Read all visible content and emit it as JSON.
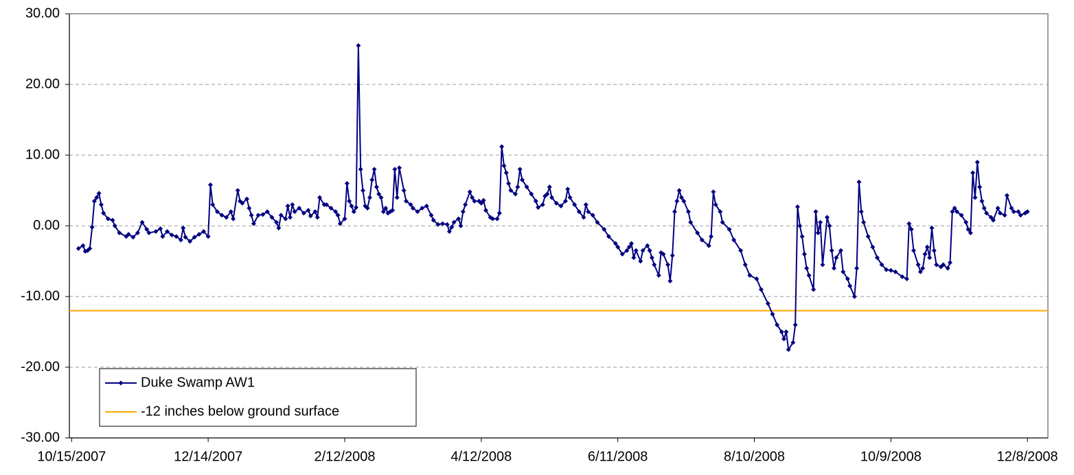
{
  "chart_data": {
    "type": "line",
    "x": [
      "10/18/2007",
      "10/20/2007",
      "10/21/2007",
      "10/22/2007",
      "10/23/2007",
      "10/24/2007",
      "10/25/2007",
      "10/26/2007",
      "10/27/2007",
      "10/28/2007",
      "10/29/2007",
      "10/31/2007",
      "11/2/2007",
      "11/3/2007",
      "11/5/2007",
      "11/8/2007",
      "11/9/2007",
      "11/11/2007",
      "11/13/2007",
      "11/15/2007",
      "11/17/2007",
      "11/18/2007",
      "11/21/2007",
      "11/23/2007",
      "11/24/2007",
      "11/26/2007",
      "11/28/2007",
      "11/30/2007",
      "12/2/2007",
      "12/3/2007",
      "12/4/2007",
      "12/6/2007",
      "12/8/2007",
      "12/10/2007",
      "12/12/2007",
      "12/14/2007",
      "12/15/2007",
      "12/16/2007",
      "12/18/2007",
      "12/20/2007",
      "12/22/2007",
      "12/24/2007",
      "12/25/2007",
      "12/27/2007",
      "12/28/2007",
      "12/29/2007",
      "12/31/2007",
      "1/1/2008",
      "1/2/2008",
      "1/3/2008",
      "1/5/2008",
      "1/7/2008",
      "1/9/2008",
      "1/11/2008",
      "1/13/2008",
      "1/14/2008",
      "1/15/2008",
      "1/17/2008",
      "1/18/2008",
      "1/19/2008",
      "1/20/2008",
      "1/21/2008",
      "1/23/2008",
      "1/25/2008",
      "1/27/2008",
      "1/28/2008",
      "1/30/2008",
      "1/31/2008",
      "2/1/2008",
      "2/3/2008",
      "2/4/2008",
      "2/6/2008",
      "2/8/2008",
      "2/9/2008",
      "2/10/2008",
      "2/12/2008",
      "2/13/2008",
      "2/14/2008",
      "2/15/2008",
      "2/16/2008",
      "2/17/2008",
      "2/18/2008",
      "2/19/2008",
      "2/20/2008",
      "2/21/2008",
      "2/22/2008",
      "2/23/2008",
      "2/24/2008",
      "2/25/2008",
      "2/26/2008",
      "2/27/2008",
      "2/28/2008",
      "2/29/2008",
      "3/1/2008",
      "3/2/2008",
      "3/3/2008",
      "3/4/2008",
      "3/5/2008",
      "3/6/2008",
      "3/7/2008",
      "3/9/2008",
      "3/10/2008",
      "3/12/2008",
      "3/13/2008",
      "3/15/2008",
      "3/17/2008",
      "3/19/2008",
      "3/21/2008",
      "3/22/2008",
      "3/24/2008",
      "3/26/2008",
      "3/28/2008",
      "3/29/2008",
      "3/30/2008",
      "3/31/2008",
      "4/2/2008",
      "4/3/2008",
      "4/4/2008",
      "4/5/2008",
      "4/7/2008",
      "4/8/2008",
      "4/9/2008",
      "4/11/2008",
      "4/12/2008",
      "4/13/2008",
      "4/14/2008",
      "4/16/2008",
      "4/17/2008",
      "4/19/2008",
      "4/20/2008",
      "4/21/2008",
      "4/22/2008",
      "4/23/2008",
      "4/24/2008",
      "4/25/2008",
      "4/27/2008",
      "4/28/2008",
      "4/29/2008",
      "4/30/2008",
      "5/2/2008",
      "5/4/2008",
      "5/6/2008",
      "5/7/2008",
      "5/9/2008",
      "5/10/2008",
      "5/11/2008",
      "5/12/2008",
      "5/13/2008",
      "5/15/2008",
      "5/17/2008",
      "5/19/2008",
      "5/20/2008",
      "5/21/2008",
      "5/23/2008",
      "5/25/2008",
      "5/27/2008",
      "5/28/2008",
      "5/29/2008",
      "5/31/2008",
      "6/2/2008",
      "6/5/2008",
      "6/7/2008",
      "6/10/2008",
      "6/11/2008",
      "6/13/2008",
      "6/15/2008",
      "6/16/2008",
      "6/17/2008",
      "6/18/2008",
      "6/19/2008",
      "6/21/2008",
      "6/22/2008",
      "6/24/2008",
      "6/25/2008",
      "6/26/2008",
      "6/27/2008",
      "6/29/2008",
      "6/30/2008",
      "7/1/2008",
      "7/3/2008",
      "7/4/2008",
      "7/5/2008",
      "7/6/2008",
      "7/7/2008",
      "7/8/2008",
      "7/9/2008",
      "7/10/2008",
      "7/12/2008",
      "7/13/2008",
      "7/16/2008",
      "7/18/2008",
      "7/21/2008",
      "7/22/2008",
      "7/23/2008",
      "7/24/2008",
      "7/26/2008",
      "7/27/2008",
      "7/30/2008",
      "8/1/2008",
      "8/4/2008",
      "8/6/2008",
      "8/8/2008",
      "8/11/2008",
      "8/13/2008",
      "8/16/2008",
      "8/18/2008",
      "8/20/2008",
      "8/22/2008",
      "8/23/2008",
      "8/24/2008",
      "8/25/2008",
      "8/27/2008",
      "8/28/2008",
      "8/29/2008",
      "8/30/2008",
      "8/31/2008",
      "9/1/2008",
      "9/2/2008",
      "9/3/2008",
      "9/5/2008",
      "9/6/2008",
      "9/7/2008",
      "9/8/2008",
      "9/9/2008",
      "9/11/2008",
      "9/12/2008",
      "9/13/2008",
      "9/14/2008",
      "9/15/2008",
      "9/17/2008",
      "9/18/2008",
      "9/20/2008",
      "9/21/2008",
      "9/23/2008",
      "9/24/2008",
      "9/25/2008",
      "9/26/2008",
      "9/27/2008",
      "9/29/2008",
      "10/1/2008",
      "10/3/2008",
      "10/5/2008",
      "10/7/2008",
      "10/9/2008",
      "10/11/2008",
      "10/14/2008",
      "10/16/2008",
      "10/17/2008",
      "10/18/2008",
      "10/19/2008",
      "10/21/2008",
      "10/22/2008",
      "10/23/2008",
      "10/24/2008",
      "10/25/2008",
      "10/26/2008",
      "10/27/2008",
      "10/28/2008",
      "10/29/2008",
      "10/31/2008",
      "11/1/2008",
      "11/3/2008",
      "11/4/2008",
      "11/5/2008",
      "11/6/2008",
      "11/7/2008",
      "11/9/2008",
      "11/11/2008",
      "11/12/2008",
      "11/13/2008",
      "11/14/2008",
      "11/15/2008",
      "11/16/2008",
      "11/17/2008",
      "11/18/2008",
      "11/19/2008",
      "11/20/2008",
      "11/22/2008",
      "11/23/2008",
      "11/25/2008",
      "11/26/2008",
      "11/28/2008",
      "11/29/2008",
      "12/1/2008",
      "12/2/2008",
      "12/4/2008",
      "12/5/2008",
      "12/7/2008",
      "12/8/2008"
    ],
    "series": [
      {
        "name": "Duke Swamp AW1",
        "color": "#000080",
        "values": [
          -3.2,
          -2.8,
          -3.6,
          -3.5,
          -3.2,
          -0.2,
          3.5,
          4.0,
          4.6,
          3.0,
          1.8,
          1.0,
          0.8,
          0.0,
          -1.0,
          -1.5,
          -1.2,
          -1.6,
          -1.0,
          0.5,
          -0.5,
          -1.0,
          -0.8,
          -0.4,
          -1.5,
          -0.8,
          -1.3,
          -1.5,
          -2.0,
          -0.3,
          -1.6,
          -2.2,
          -1.6,
          -1.2,
          -0.8,
          -1.5,
          5.8,
          3.0,
          2.0,
          1.5,
          1.2,
          2.0,
          1.0,
          5.0,
          3.5,
          3.2,
          3.8,
          2.5,
          1.5,
          0.3,
          1.5,
          1.6,
          2.0,
          1.2,
          0.5,
          -0.3,
          1.5,
          1.0,
          2.8,
          1.2,
          3.0,
          2.0,
          2.5,
          1.8,
          2.2,
          1.4,
          2.0,
          1.2,
          4.0,
          3.0,
          3.0,
          2.5,
          2.0,
          1.5,
          0.3,
          1.0,
          6.0,
          3.5,
          2.8,
          2.0,
          2.6,
          25.5,
          8.0,
          5.0,
          2.8,
          2.5,
          4.0,
          6.5,
          8.0,
          5.5,
          4.5,
          4.0,
          2.0,
          2.5,
          1.8,
          2.0,
          2.2,
          8.0,
          4.0,
          8.2,
          5.0,
          3.5,
          3.0,
          2.5,
          2.0,
          2.5,
          2.8,
          1.5,
          0.8,
          0.2,
          0.3,
          0.2,
          -0.8,
          -0.2,
          0.5,
          1.0,
          0.0,
          2.0,
          3.0,
          4.8,
          4.0,
          3.5,
          3.5,
          3.2,
          3.6,
          2.2,
          1.2,
          1.0,
          1.0,
          1.8,
          11.2,
          8.5,
          7.5,
          6.0,
          5.0,
          4.5,
          5.5,
          8.0,
          6.5,
          5.5,
          4.5,
          3.5,
          2.6,
          3.0,
          4.2,
          4.5,
          5.5,
          4.0,
          3.2,
          2.8,
          3.5,
          5.2,
          4.0,
          3.0,
          2.0,
          1.2,
          3.0,
          2.0,
          1.5,
          0.5,
          -0.5,
          -1.5,
          -2.5,
          -3.0,
          -4.0,
          -3.5,
          -3.0,
          -2.5,
          -4.5,
          -3.5,
          -5.0,
          -3.5,
          -2.8,
          -3.5,
          -4.5,
          -5.5,
          -7.0,
          -3.8,
          -4.0,
          -5.5,
          -7.8,
          -4.2,
          2.0,
          3.5,
          5.0,
          4.0,
          3.5,
          2.0,
          0.5,
          -1.0,
          -2.0,
          -2.8,
          -1.5,
          4.8,
          3.0,
          2.0,
          0.5,
          -0.5,
          -2.0,
          -3.5,
          -5.5,
          -7.0,
          -7.5,
          -9.0,
          -11.0,
          -12.5,
          -14.0,
          -15.0,
          -16.0,
          -15.0,
          -17.5,
          -16.5,
          -14.0,
          2.7,
          0.0,
          -1.5,
          -4.0,
          -6.0,
          -7.0,
          -9.0,
          2.0,
          -1.0,
          0.5,
          -5.5,
          1.2,
          0.0,
          -3.5,
          -6.0,
          -4.5,
          -3.5,
          -6.5,
          -7.5,
          -8.5,
          -10.0,
          -6.0,
          6.2,
          2.0,
          0.5,
          -1.5,
          -3.0,
          -4.5,
          -5.5,
          -6.2,
          -6.3,
          -6.5,
          -7.2,
          -7.5,
          0.3,
          -0.5,
          -3.5,
          -5.5,
          -6.5,
          -6.0,
          -4.0,
          -3.0,
          -4.5,
          -0.3,
          -3.5,
          -5.5,
          -5.8,
          -5.5,
          -6.0,
          -5.2,
          2.0,
          2.5,
          2.0,
          1.5,
          0.5,
          -0.5,
          -1.0,
          7.5,
          4.0,
          9.0,
          5.5,
          3.5,
          2.5,
          1.8,
          1.2,
          0.8,
          2.5,
          1.8,
          1.5,
          4.3,
          2.5,
          2.0,
          2.0,
          1.5,
          1.8,
          2.0
        ]
      }
    ],
    "reference_lines": [
      {
        "name": "-12 inches below ground surface",
        "value": -12,
        "color": "#ffa500"
      }
    ],
    "xlim": [
      "10/14/2007",
      "12/17/2008"
    ],
    "xticks": [
      "10/15/2007",
      "12/14/2007",
      "2/12/2008",
      "4/12/2008",
      "6/11/2008",
      "8/10/2008",
      "10/9/2008",
      "12/8/2008"
    ],
    "ylim": [
      -30,
      30
    ],
    "yticks": [
      {
        "value": -30,
        "label": "-30.00"
      },
      {
        "value": -20,
        "label": "-20.00"
      },
      {
        "value": -10,
        "label": "-10.00"
      },
      {
        "value": 0,
        "label": "0.00"
      },
      {
        "value": 10,
        "label": "10.00"
      },
      {
        "value": 20,
        "label": "20.00"
      },
      {
        "value": 30,
        "label": "30.00"
      }
    ],
    "grid": true,
    "legend": "lower left"
  }
}
